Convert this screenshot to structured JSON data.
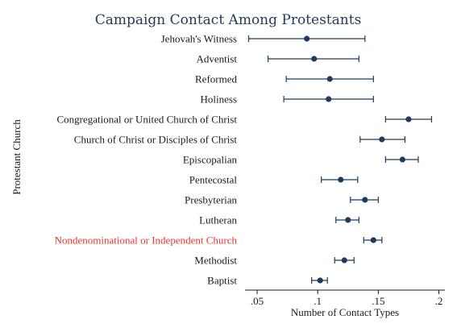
{
  "chart_data": {
    "type": "scatter",
    "subtype": "dot-and-whisker",
    "title": "Campaign Contact Among Protestants",
    "xlabel": "Number of Contact Types",
    "ylabel": "Protestant Church",
    "xlim": [
      0.04,
      0.205
    ],
    "xticks": [
      0.05,
      0.1,
      0.15,
      0.2
    ],
    "xtick_labels": [
      ".05",
      ".1",
      ".15",
      ".2"
    ],
    "grid": false,
    "highlight_color": "#e8352a",
    "point_color": "#1f3b5b",
    "categories": [
      "Jehovah's Witness",
      "Adventist",
      "Reformed",
      "Holiness",
      "Congregational or United Church of Christ",
      "Church of Christ or Disciples of Christ",
      "Episcopalian",
      "Pentecostal",
      "Presbyterian",
      "Lutheran",
      "Nondenominational or Independent Church",
      "Methodist",
      "Baptist"
    ],
    "highlighted": [
      "Nondenominational or Independent Church"
    ],
    "estimates": [
      0.091,
      0.097,
      0.11,
      0.109,
      0.175,
      0.153,
      0.17,
      0.119,
      0.139,
      0.125,
      0.146,
      0.122,
      0.102
    ],
    "ci_low": [
      0.043,
      0.059,
      0.074,
      0.072,
      0.156,
      0.135,
      0.156,
      0.103,
      0.127,
      0.115,
      0.138,
      0.114,
      0.095
    ],
    "ci_high": [
      0.139,
      0.134,
      0.146,
      0.146,
      0.194,
      0.172,
      0.183,
      0.133,
      0.15,
      0.134,
      0.153,
      0.13,
      0.108
    ]
  }
}
